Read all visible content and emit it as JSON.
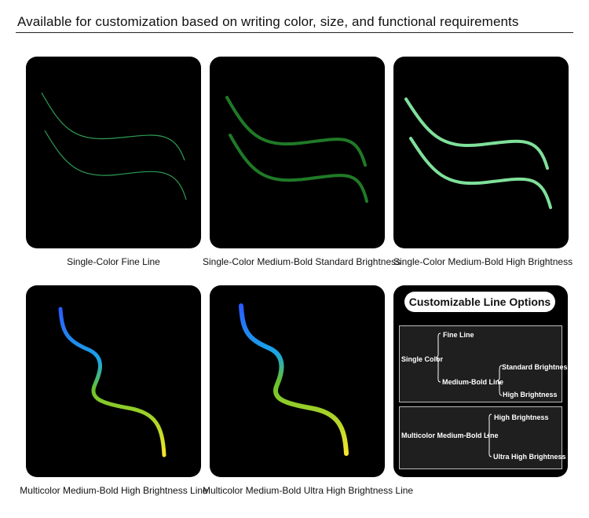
{
  "header": {
    "title": "Available for customization based on writing color, size, and functional requirements"
  },
  "panels": [
    {
      "caption": "Single-Color Fine Line"
    },
    {
      "caption": "Single-Color Medium-Bold Standard Brightness"
    },
    {
      "caption": "Single-Color Medium-Bold High Brightness"
    },
    {
      "caption": "Multicolor Medium-Bold High Brightness Line"
    },
    {
      "caption": "Multicolor Medium-Bold Ultra High Brightness Line"
    }
  ],
  "options": {
    "title": "Customizable Line Options",
    "single": {
      "label": "Single Color",
      "fine": "Fine Line",
      "medium": "Medium-Bold Line",
      "standard": "Standard Brightness",
      "high": "High Brightness"
    },
    "multi": {
      "label": "Multicolor Medium-Bold Line",
      "high": "High Brightness",
      "ultra": "Ultra High Brightness"
    }
  },
  "colors": {
    "fine_line": "#2e9e55",
    "standard_green": "#1f7a26",
    "bright_green": "#7fe09a",
    "gradient": [
      "#2a5cff",
      "#1aa6e6",
      "#68c22a",
      "#f5e62a"
    ]
  }
}
